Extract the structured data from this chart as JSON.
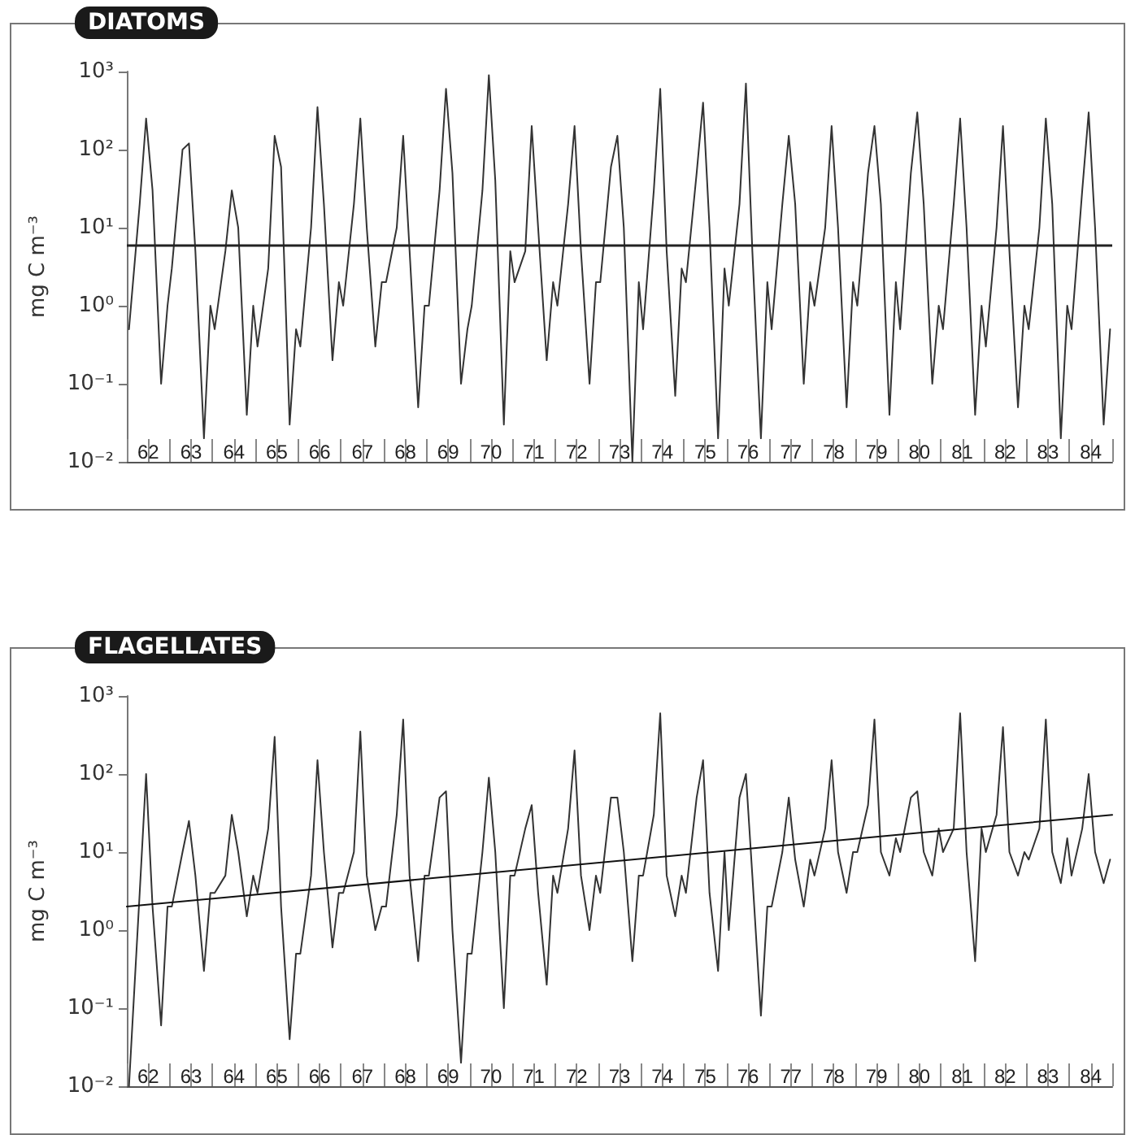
{
  "chart_data": [
    {
      "type": "line",
      "title": "DIATOMS",
      "ylabel": "mg C m⁻³",
      "log": "y",
      "grid": false,
      "legend": false,
      "xlim": [
        61.5,
        84.5
      ],
      "xticks": [
        {
          "value": 61.5,
          "label": null
        },
        62,
        {
          "value": 62.5,
          "label": null
        },
        63,
        {
          "value": 63.5,
          "label": null
        },
        64,
        {
          "value": 64.5,
          "label": null
        },
        65,
        {
          "value": 65.5,
          "label": null
        },
        66,
        {
          "value": 66.5,
          "label": null
        },
        67,
        {
          "value": 67.5,
          "label": null
        },
        68,
        {
          "value": 68.5,
          "label": null
        },
        69,
        {
          "value": 69.5,
          "label": null
        },
        70,
        {
          "value": 70.5,
          "label": null
        },
        71,
        {
          "value": 71.5,
          "label": null
        },
        72,
        {
          "value": 72.5,
          "label": null
        },
        73,
        {
          "value": 73.5,
          "label": null
        },
        74,
        {
          "value": 74.5,
          "label": null
        },
        75,
        {
          "value": 75.5,
          "label": null
        },
        76,
        {
          "value": 76.5,
          "label": null
        },
        77,
        {
          "value": 77.5,
          "label": null
        },
        78,
        {
          "value": 78.5,
          "label": null
        },
        79,
        {
          "value": 79.5,
          "label": null
        },
        80,
        {
          "value": 80.5,
          "label": null
        },
        81,
        {
          "value": 81.5,
          "label": null
        },
        82,
        {
          "value": 82.5,
          "label": null
        },
        83,
        {
          "value": 83.5,
          "label": null
        },
        84,
        {
          "value": 84.5,
          "label": null
        }
      ],
      "ylim": [
        0.01,
        1000
      ],
      "yticks": [
        {
          "value": 0.01,
          "label": "10⁻²"
        },
        {
          "value": 0.1,
          "label": "10⁻¹"
        },
        {
          "value": 1,
          "label": "10⁰"
        },
        {
          "value": 10,
          "label": "10¹"
        },
        {
          "value": 100,
          "label": "10²"
        },
        {
          "value": 1000,
          "label": "10³"
        }
      ],
      "x": [
        61.55,
        61.8,
        61.95,
        62.1,
        62.3,
        62.45,
        62.55,
        62.8,
        62.95,
        63.1,
        63.3,
        63.45,
        63.55,
        63.8,
        63.95,
        64.1,
        64.3,
        64.45,
        64.55,
        64.8,
        64.95,
        65.1,
        65.3,
        65.45,
        65.55,
        65.8,
        65.95,
        66.1,
        66.3,
        66.45,
        66.55,
        66.8,
        66.95,
        67.1,
        67.3,
        67.45,
        67.55,
        67.8,
        67.95,
        68.1,
        68.3,
        68.45,
        68.55,
        68.8,
        68.95,
        69.1,
        69.3,
        69.45,
        69.55,
        69.8,
        69.95,
        70.1,
        70.3,
        70.45,
        70.55,
        70.8,
        70.95,
        71.1,
        71.3,
        71.45,
        71.55,
        71.8,
        71.95,
        72.1,
        72.3,
        72.45,
        72.55,
        72.8,
        72.95,
        73.1,
        73.3,
        73.45,
        73.55,
        73.8,
        73.95,
        74.1,
        74.3,
        74.45,
        74.55,
        74.8,
        74.95,
        75.1,
        75.3,
        75.45,
        75.55,
        75.8,
        75.95,
        76.1,
        76.3,
        76.45,
        76.55,
        76.8,
        76.95,
        77.1,
        77.3,
        77.45,
        77.55,
        77.8,
        77.95,
        78.1,
        78.3,
        78.45,
        78.55,
        78.8,
        78.95,
        79.1,
        79.3,
        79.45,
        79.55,
        79.8,
        79.95,
        80.1,
        80.3,
        80.45,
        80.55,
        80.8,
        80.95,
        81.1,
        81.3,
        81.45,
        81.55,
        81.8,
        81.95,
        82.1,
        82.3,
        82.45,
        82.55,
        82.8,
        82.95,
        83.1,
        83.3,
        83.45,
        83.55,
        83.8,
        83.95,
        84.1,
        84.3,
        84.45
      ],
      "series": [
        {
          "color": "#333333",
          "values": [
            0.5,
            20,
            250,
            30,
            0.1,
            1,
            3,
            100,
            120,
            5,
            0.02,
            1,
            0.5,
            5,
            30,
            10,
            0.04,
            1,
            0.3,
            3,
            150,
            60,
            0.03,
            0.5,
            0.3,
            10,
            350,
            20,
            0.2,
            2,
            1,
            20,
            250,
            10,
            0.3,
            2,
            2,
            10,
            150,
            5,
            0.05,
            1,
            1,
            30,
            600,
            50,
            0.1,
            0.5,
            1,
            30,
            900,
            40,
            0.03,
            5,
            2,
            5,
            200,
            10,
            0.2,
            2,
            1,
            20,
            200,
            5,
            0.1,
            2,
            2,
            60,
            150,
            10,
            0.01,
            2,
            0.5,
            30,
            600,
            5,
            0.07,
            3,
            2,
            50,
            400,
            10,
            0.02,
            3,
            1,
            20,
            700,
            5,
            0.02,
            2,
            0.5,
            20,
            150,
            20,
            0.1,
            2,
            1,
            10,
            200,
            10,
            0.05,
            2,
            1,
            50,
            200,
            20,
            0.04,
            2,
            0.5,
            50,
            300,
            20,
            0.1,
            1,
            0.5,
            20,
            250,
            10,
            0.04,
            1,
            0.3,
            10,
            200,
            5,
            0.05,
            1,
            0.5,
            10,
            250,
            20,
            0.02,
            1,
            0.5,
            30,
            300,
            10,
            0.03,
            0.5
          ]
        }
      ],
      "ref_lines": [
        {
          "axis": "y",
          "value": 6,
          "color": "#222222"
        }
      ]
    },
    {
      "type": "line",
      "title": "FLAGELLATES",
      "ylabel": "mg C m⁻³",
      "log": "y",
      "grid": false,
      "legend": false,
      "xlim": [
        61.5,
        84.5
      ],
      "xticks": [
        {
          "value": 61.5,
          "label": null
        },
        62,
        {
          "value": 62.5,
          "label": null
        },
        63,
        {
          "value": 63.5,
          "label": null
        },
        64,
        {
          "value": 64.5,
          "label": null
        },
        65,
        {
          "value": 65.5,
          "label": null
        },
        66,
        {
          "value": 66.5,
          "label": null
        },
        67,
        {
          "value": 67.5,
          "label": null
        },
        68,
        {
          "value": 68.5,
          "label": null
        },
        69,
        {
          "value": 69.5,
          "label": null
        },
        70,
        {
          "value": 70.5,
          "label": null
        },
        71,
        {
          "value": 71.5,
          "label": null
        },
        72,
        {
          "value": 72.5,
          "label": null
        },
        73,
        {
          "value": 73.5,
          "label": null
        },
        74,
        {
          "value": 74.5,
          "label": null
        },
        75,
        {
          "value": 75.5,
          "label": null
        },
        76,
        {
          "value": 76.5,
          "label": null
        },
        77,
        {
          "value": 77.5,
          "label": null
        },
        78,
        {
          "value": 78.5,
          "label": null
        },
        79,
        {
          "value": 79.5,
          "label": null
        },
        80,
        {
          "value": 80.5,
          "label": null
        },
        81,
        {
          "value": 81.5,
          "label": null
        },
        82,
        {
          "value": 82.5,
          "label": null
        },
        83,
        {
          "value": 83.5,
          "label": null
        },
        84,
        {
          "value": 84.5,
          "label": null
        }
      ],
      "ylim": [
        0.01,
        1000
      ],
      "yticks": [
        {
          "value": 0.01,
          "label": "10⁻²"
        },
        {
          "value": 0.1,
          "label": "10⁻¹"
        },
        {
          "value": 1,
          "label": "10⁰"
        },
        {
          "value": 10,
          "label": "10¹"
        },
        {
          "value": 100,
          "label": "10²"
        },
        {
          "value": 1000,
          "label": "10³"
        }
      ],
      "x": [
        61.55,
        61.8,
        61.95,
        62.1,
        62.3,
        62.45,
        62.55,
        62.8,
        62.95,
        63.1,
        63.3,
        63.45,
        63.55,
        63.8,
        63.95,
        64.1,
        64.3,
        64.45,
        64.55,
        64.8,
        64.95,
        65.1,
        65.3,
        65.45,
        65.55,
        65.8,
        65.95,
        66.1,
        66.3,
        66.45,
        66.55,
        66.8,
        66.95,
        67.1,
        67.3,
        67.45,
        67.55,
        67.8,
        67.95,
        68.1,
        68.3,
        68.45,
        68.55,
        68.8,
        68.95,
        69.1,
        69.3,
        69.45,
        69.55,
        69.8,
        69.95,
        70.1,
        70.3,
        70.45,
        70.55,
        70.8,
        70.95,
        71.1,
        71.3,
        71.45,
        71.55,
        71.8,
        71.95,
        72.1,
        72.3,
        72.45,
        72.55,
        72.8,
        72.95,
        73.1,
        73.3,
        73.45,
        73.55,
        73.8,
        73.95,
        74.1,
        74.3,
        74.45,
        74.55,
        74.8,
        74.95,
        75.1,
        75.3,
        75.45,
        75.55,
        75.8,
        75.95,
        76.1,
        76.3,
        76.45,
        76.55,
        76.8,
        76.95,
        77.1,
        77.3,
        77.45,
        77.55,
        77.8,
        77.95,
        78.1,
        78.3,
        78.45,
        78.55,
        78.8,
        78.95,
        79.1,
        79.3,
        79.45,
        79.55,
        79.8,
        79.95,
        80.1,
        80.3,
        80.45,
        80.55,
        80.8,
        80.95,
        81.1,
        81.3,
        81.45,
        81.55,
        81.8,
        81.95,
        82.1,
        82.3,
        82.45,
        82.55,
        82.8,
        82.95,
        83.1,
        83.3,
        83.45,
        83.55,
        83.8,
        83.95,
        84.1,
        84.3,
        84.45
      ],
      "series": [
        {
          "color": "#333333",
          "values": [
            0.01,
            3,
            100,
            2,
            0.06,
            2,
            2,
            10,
            25,
            5,
            0.3,
            3,
            3,
            5,
            30,
            10,
            1.5,
            5,
            3,
            20,
            300,
            2,
            0.04,
            0.5,
            0.5,
            5,
            150,
            10,
            0.6,
            3,
            3,
            10,
            350,
            5,
            1,
            2,
            2,
            30,
            500,
            5,
            0.4,
            5,
            5,
            50,
            60,
            1,
            0.02,
            0.5,
            0.5,
            10,
            90,
            10,
            0.1,
            5,
            5,
            20,
            40,
            3,
            0.2,
            5,
            3,
            20,
            200,
            5,
            1,
            5,
            3,
            50,
            50,
            10,
            0.4,
            5,
            5,
            30,
            600,
            5,
            1.5,
            5,
            3,
            50,
            150,
            3,
            0.3,
            10,
            1,
            50,
            100,
            5,
            0.08,
            2,
            2,
            10,
            50,
            8,
            2,
            8,
            5,
            20,
            150,
            10,
            3,
            10,
            10,
            40,
            500,
            10,
            5,
            15,
            10,
            50,
            60,
            10,
            5,
            20,
            10,
            20,
            600,
            10,
            0.4,
            20,
            10,
            30,
            400,
            10,
            5,
            10,
            8,
            20,
            500,
            10,
            4,
            15,
            5,
            20,
            100,
            10,
            4,
            8
          ]
        },
        {
          "type": "line",
          "color": "#111111",
          "x": [
            61.5,
            84.5
          ],
          "values": [
            2,
            30
          ]
        }
      ]
    }
  ]
}
